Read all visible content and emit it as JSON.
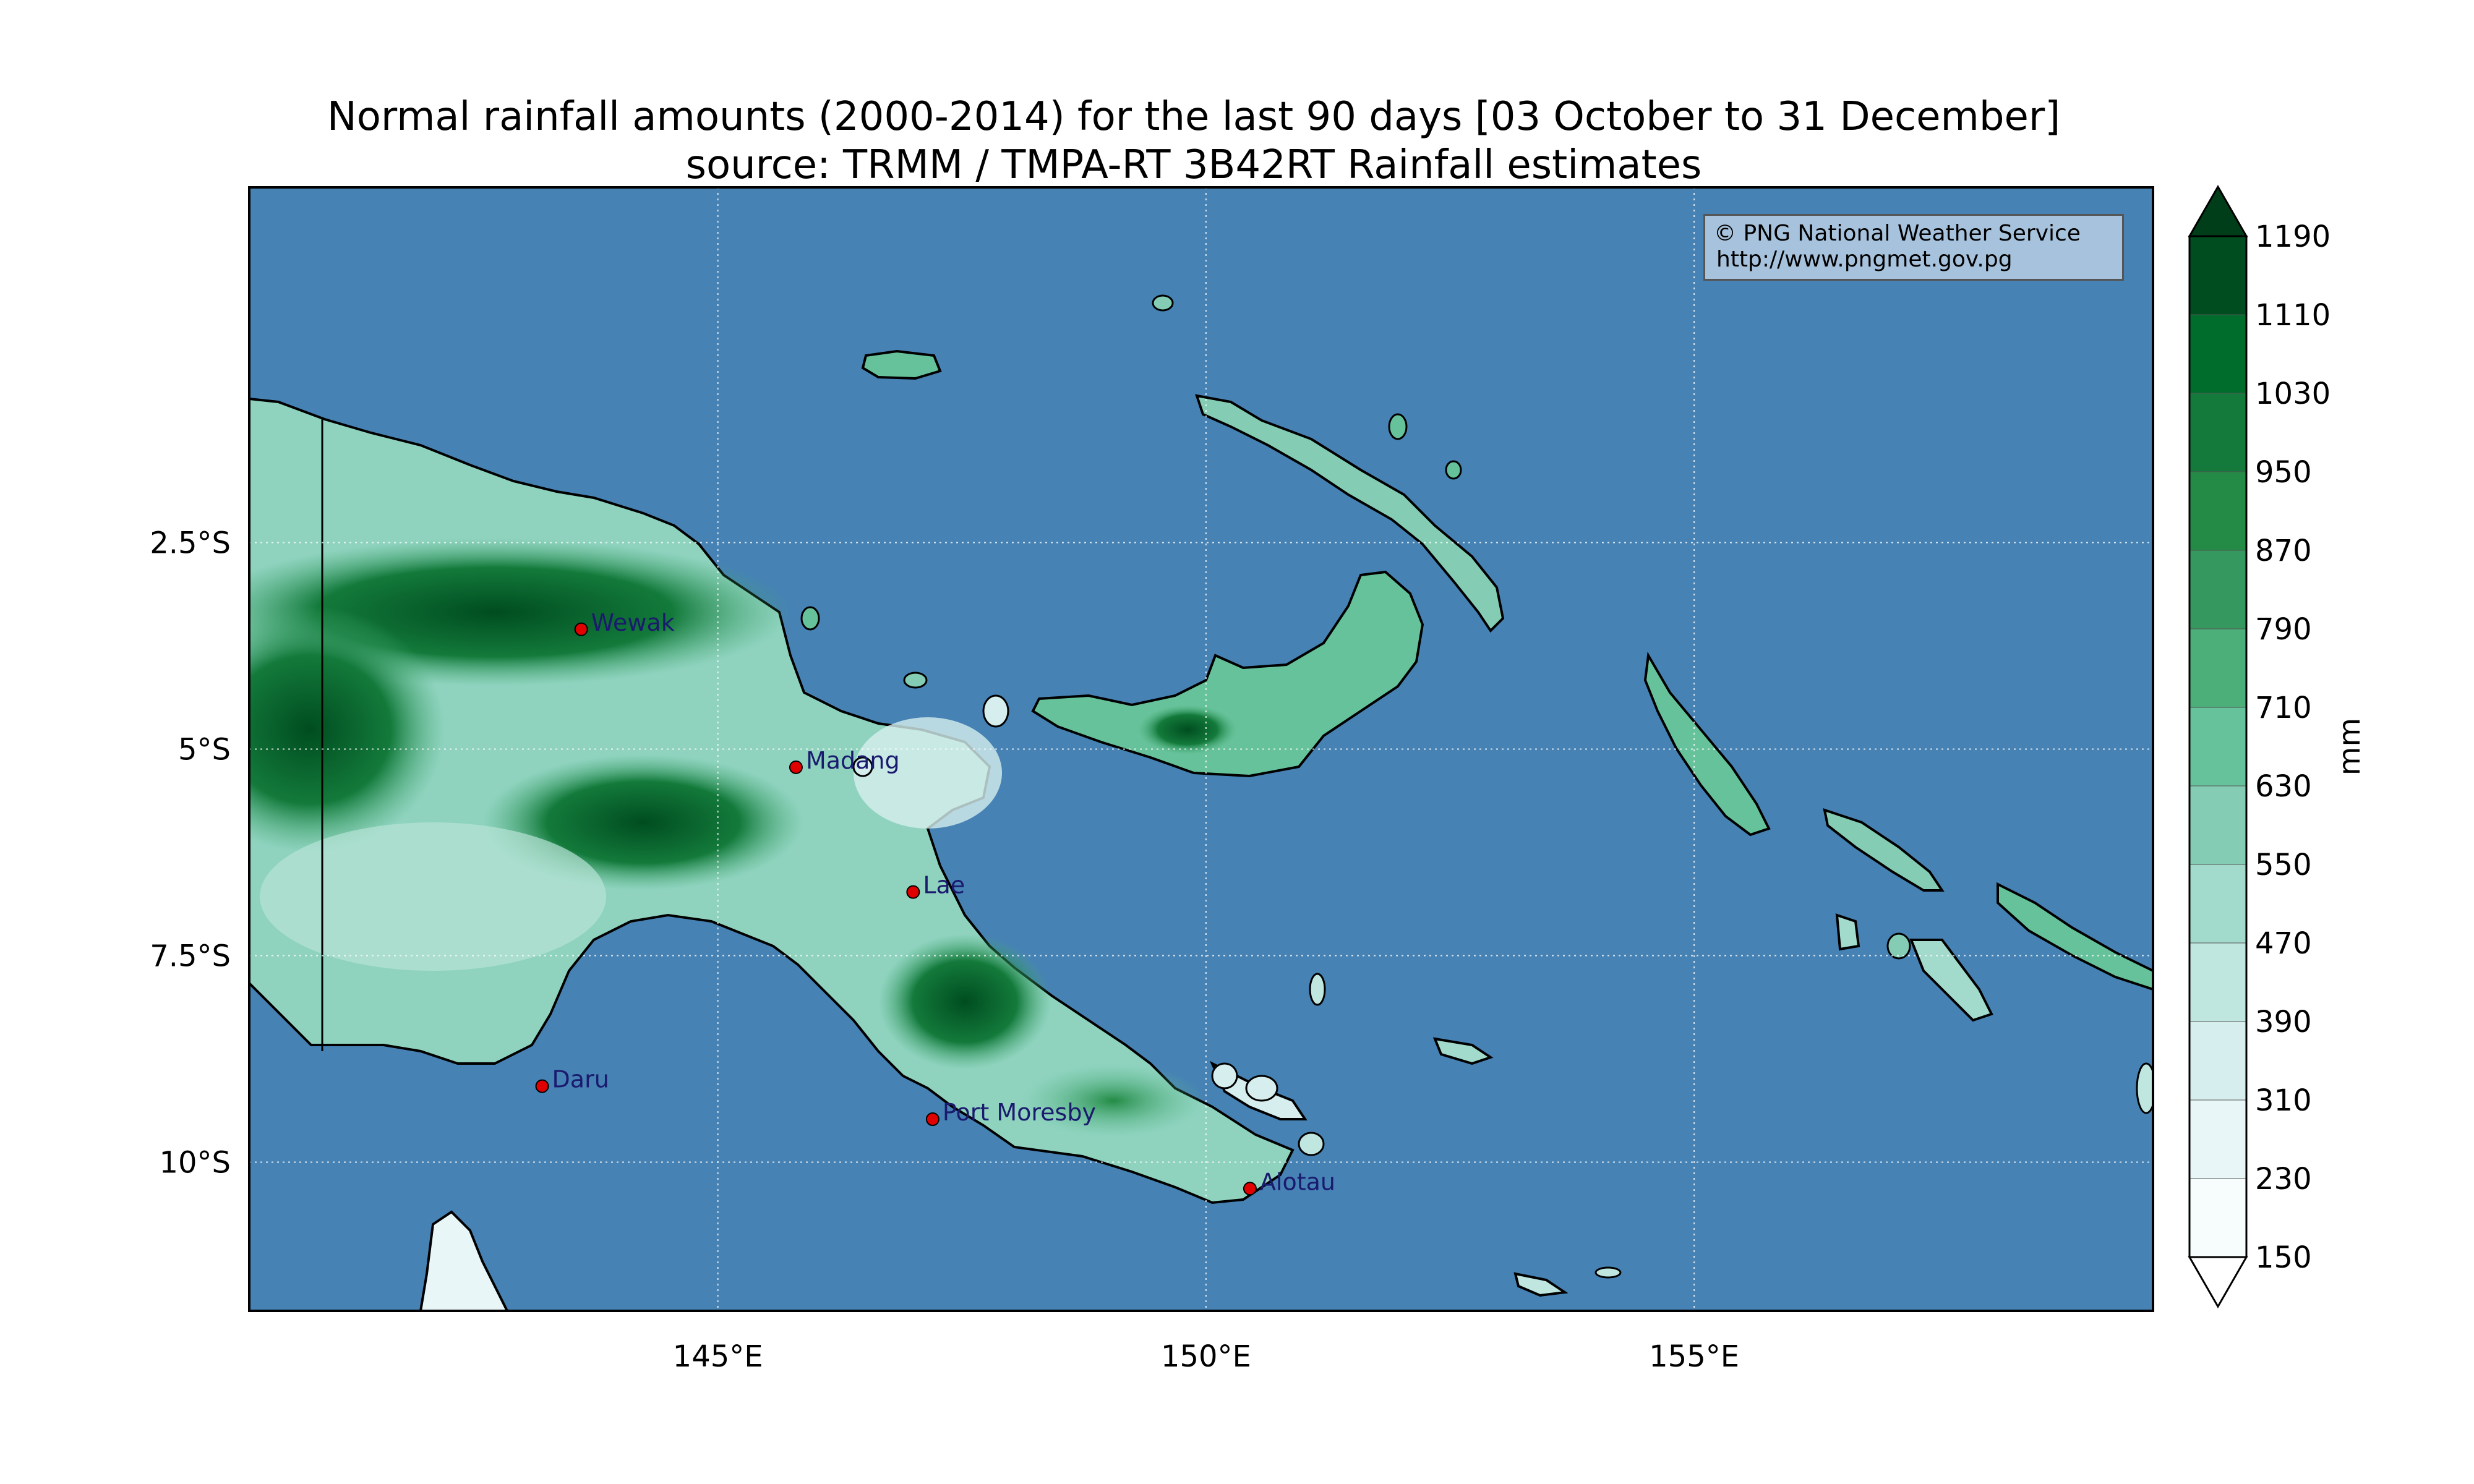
{
  "title": "Normal rainfall amounts (2000-2014) for the last 90 days [03 October to 31 December]",
  "subtitle": "source: TRMM / TMPA-RT 3B42RT Rainfall estimates",
  "credit": {
    "line1": "© PNG National Weather Service",
    "line2": "http://www.pngmet.gov.pg"
  },
  "map": {
    "lon_range": [
      140.2,
      159.7
    ],
    "lat_range": [
      -11.8,
      1.8
    ],
    "ocean_color": "#4682b4",
    "x_ticks": [
      {
        "value": 145,
        "label": "145°E"
      },
      {
        "value": 150,
        "label": "150°E"
      },
      {
        "value": 155,
        "label": "155°E"
      }
    ],
    "y_ticks": [
      {
        "value": -2.5,
        "label": "2.5°S"
      },
      {
        "value": -5,
        "label": "5°S"
      },
      {
        "value": -7.5,
        "label": "7.5°S"
      },
      {
        "value": -10,
        "label": "10°S"
      }
    ],
    "cities": [
      {
        "name": "Wewak",
        "lon": 143.6,
        "lat": -3.55
      },
      {
        "name": "Madang",
        "lon": 145.8,
        "lat": -5.22
      },
      {
        "name": "Lae",
        "lon": 147.0,
        "lat": -6.73
      },
      {
        "name": "Daru",
        "lon": 143.2,
        "lat": -9.08
      },
      {
        "name": "Port Moresby",
        "lon": 147.2,
        "lat": -9.48
      },
      {
        "name": "Alotau",
        "lon": 150.45,
        "lat": -10.32
      }
    ]
  },
  "colorbar": {
    "label": "mm",
    "levels": [
      "150",
      "230",
      "310",
      "390",
      "470",
      "550",
      "630",
      "710",
      "790",
      "870",
      "950",
      "1030",
      "1110",
      "1190"
    ],
    "colors": [
      "#f7fcfd",
      "#e8f6f8",
      "#d6efee",
      "#bfe6df",
      "#a2dacb",
      "#84cdb4",
      "#66c29a",
      "#4caf7a",
      "#35995f",
      "#238b45",
      "#137a3b",
      "#006d2c",
      "#004d1f"
    ]
  }
}
